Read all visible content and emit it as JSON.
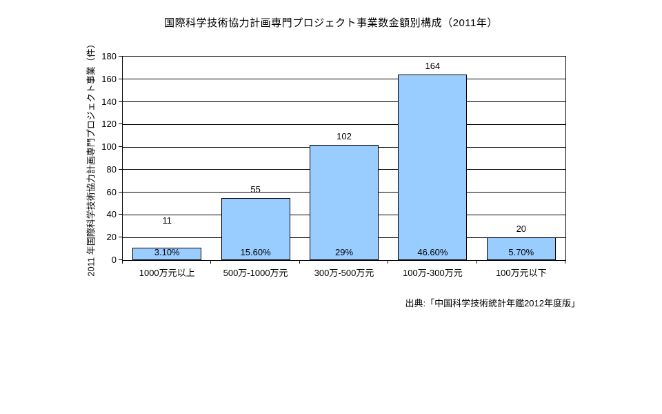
{
  "source": "出典:「中国科学技術統計年鑑2012年度版」",
  "chart_data": {
    "type": "bar",
    "title": "国際科学技術協力計画専門プロジェクト事業数金額別構成（2011年）",
    "categories": [
      "1000万元以上",
      "500万-1000万元",
      "300万-500万元",
      "100万-300万元",
      "100万元以下"
    ],
    "values": [
      11,
      55,
      102,
      164,
      20
    ],
    "pct_labels": [
      "3.10%",
      "15.60%",
      "29%",
      "46.60%",
      "5.70%"
    ],
    "xlabel": "",
    "ylabel": "2011 年国際科学技術協力計画専門プロジェクト事業（件）",
    "ylim": [
      0,
      180
    ],
    "yticks": [
      0,
      20,
      40,
      60,
      80,
      100,
      120,
      140,
      160,
      180
    ],
    "grid": true,
    "legend": false,
    "bar_color": "#99CCFF",
    "bar_border_color": "#000000",
    "text_color": "#000000",
    "background_color": "#FFFFFF"
  }
}
